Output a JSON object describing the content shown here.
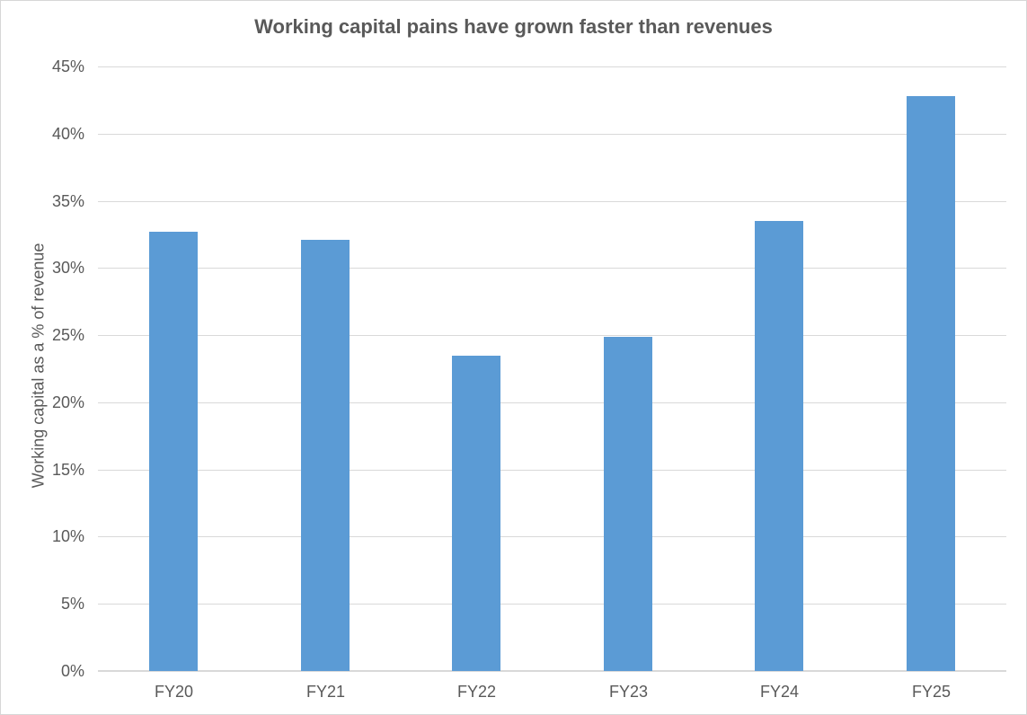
{
  "chart_data": {
    "type": "bar",
    "title": "Working capital pains have grown faster than revenues",
    "xlabel": "",
    "ylabel": "Working capital as a % of revenue",
    "categories": [
      "FY20",
      "FY21",
      "FY22",
      "FY23",
      "FY24",
      "FY25"
    ],
    "values": [
      32.7,
      32.1,
      23.5,
      24.9,
      33.5,
      42.8
    ],
    "ylim": [
      0,
      45
    ],
    "y_tick_step": 5,
    "y_tick_labels": [
      "0%",
      "5%",
      "10%",
      "15%",
      "20%",
      "25%",
      "30%",
      "35%",
      "40%",
      "45%"
    ],
    "grid": true,
    "legend": "none",
    "bar_color": "#5B9BD5",
    "gridline_color": "#D9D9D9",
    "axis_line_color": "#D9D9D9",
    "text_color": "#595959"
  }
}
